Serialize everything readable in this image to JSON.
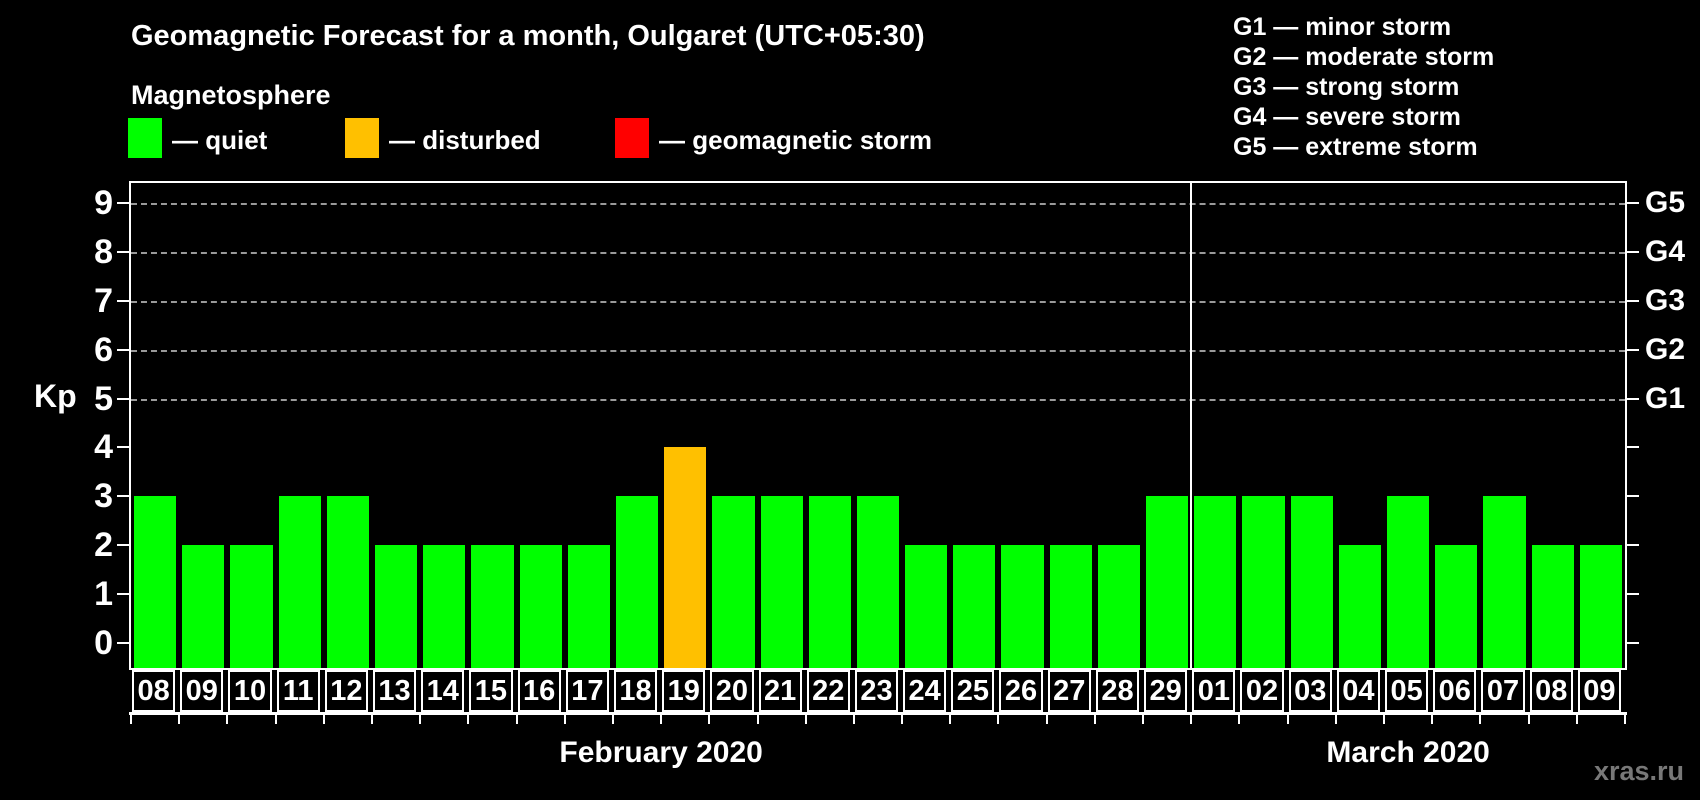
{
  "title": "Geomagnetic Forecast for a month, Oulgaret (UTC+05:30)",
  "legend": {
    "heading": "Magnetosphere",
    "items": [
      {
        "key": "quiet",
        "label": "— quiet",
        "color": "#00ff00"
      },
      {
        "key": "disturbed",
        "label": "— disturbed",
        "color": "#ffc000"
      },
      {
        "key": "storm",
        "label": "— geomagnetic storm",
        "color": "#ff0000"
      }
    ]
  },
  "storm_scale": [
    "G1 — minor storm",
    "G2 — moderate storm",
    "G3 — strong storm",
    "G4 — severe storm",
    "G5 — extreme storm"
  ],
  "watermark": "xras.ru",
  "chart_data": {
    "type": "bar",
    "title": "Geomagnetic Forecast for a month, Oulgaret (UTC+05:30)",
    "ylabel": "Kp",
    "ylim": [
      0,
      9.5
    ],
    "yticks": [
      0,
      1,
      2,
      3,
      4,
      5,
      6,
      7,
      8,
      9
    ],
    "dashed_grid_levels": [
      5,
      6,
      7,
      8,
      9
    ],
    "right_axis": [
      {
        "label": "G1",
        "kp": 5
      },
      {
        "label": "G2",
        "kp": 6
      },
      {
        "label": "G3",
        "kp": 7
      },
      {
        "label": "G4",
        "kp": 8
      },
      {
        "label": "G5",
        "kp": 9
      }
    ],
    "status_colors": {
      "quiet": "#00ff00",
      "disturbed": "#ffc000",
      "storm": "#ff0000"
    },
    "months": [
      {
        "label": "February 2020",
        "days": [
          {
            "day": "08",
            "kp": 3,
            "status": "quiet"
          },
          {
            "day": "09",
            "kp": 2,
            "status": "quiet"
          },
          {
            "day": "10",
            "kp": 2,
            "status": "quiet"
          },
          {
            "day": "11",
            "kp": 3,
            "status": "quiet"
          },
          {
            "day": "12",
            "kp": 3,
            "status": "quiet"
          },
          {
            "day": "13",
            "kp": 2,
            "status": "quiet"
          },
          {
            "day": "14",
            "kp": 2,
            "status": "quiet"
          },
          {
            "day": "15",
            "kp": 2,
            "status": "quiet"
          },
          {
            "day": "16",
            "kp": 2,
            "status": "quiet"
          },
          {
            "day": "17",
            "kp": 2,
            "status": "quiet"
          },
          {
            "day": "18",
            "kp": 3,
            "status": "quiet"
          },
          {
            "day": "19",
            "kp": 4,
            "status": "disturbed"
          },
          {
            "day": "20",
            "kp": 3,
            "status": "quiet"
          },
          {
            "day": "21",
            "kp": 3,
            "status": "quiet"
          },
          {
            "day": "22",
            "kp": 3,
            "status": "quiet"
          },
          {
            "day": "23",
            "kp": 3,
            "status": "quiet"
          },
          {
            "day": "24",
            "kp": 2,
            "status": "quiet"
          },
          {
            "day": "25",
            "kp": 2,
            "status": "quiet"
          },
          {
            "day": "26",
            "kp": 2,
            "status": "quiet"
          },
          {
            "day": "27",
            "kp": 2,
            "status": "quiet"
          },
          {
            "day": "28",
            "kp": 2,
            "status": "quiet"
          },
          {
            "day": "29",
            "kp": 3,
            "status": "quiet"
          }
        ]
      },
      {
        "label": "March 2020",
        "days": [
          {
            "day": "01",
            "kp": 3,
            "status": "quiet"
          },
          {
            "day": "02",
            "kp": 3,
            "status": "quiet"
          },
          {
            "day": "03",
            "kp": 3,
            "status": "quiet"
          },
          {
            "day": "04",
            "kp": 2,
            "status": "quiet"
          },
          {
            "day": "05",
            "kp": 3,
            "status": "quiet"
          },
          {
            "day": "06",
            "kp": 2,
            "status": "quiet"
          },
          {
            "day": "07",
            "kp": 3,
            "status": "quiet"
          },
          {
            "day": "08",
            "kp": 2,
            "status": "quiet"
          },
          {
            "day": "09",
            "kp": 2,
            "status": "quiet"
          }
        ]
      }
    ]
  }
}
